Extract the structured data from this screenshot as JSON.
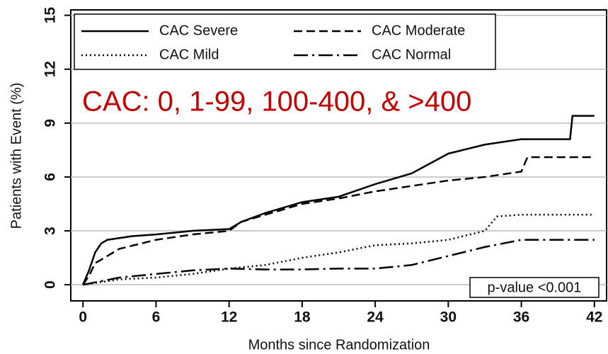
{
  "chart_data": {
    "type": "line",
    "annotation": "CAC: 0, 1-99, 100-400, & >400",
    "p_value": "p-value <0.001",
    "x_label": "Months since Randomization",
    "y_label": "Patients with Event (%)",
    "xlim": [
      -1,
      43
    ],
    "ylim": [
      -0.9,
      15.3
    ],
    "xticks": [
      0,
      6,
      12,
      18,
      24,
      30,
      36,
      42
    ],
    "yticks": [
      0,
      3,
      6,
      9,
      12,
      15
    ],
    "grid": true,
    "legend": "top-left",
    "series": [
      {
        "name": "CAC Severe",
        "color": "#000000",
        "dash": "solid",
        "x": [
          0,
          0.5,
          1,
          1.5,
          2,
          3,
          4,
          6,
          9,
          12,
          13,
          15,
          18,
          21,
          24,
          27,
          30,
          33,
          36,
          40,
          40.2,
          42
        ],
        "values": [
          0,
          0.8,
          1.8,
          2.3,
          2.5,
          2.6,
          2.7,
          2.8,
          3.0,
          3.1,
          3.5,
          4.0,
          4.6,
          4.9,
          5.6,
          6.2,
          7.3,
          7.8,
          8.1,
          8.1,
          9.4,
          9.4
        ]
      },
      {
        "name": "CAC Moderate",
        "color": "#000000",
        "dash": "dashed",
        "x": [
          0,
          0.5,
          1,
          2,
          3,
          6,
          9,
          12,
          13,
          15,
          18,
          21,
          24,
          27,
          30,
          33,
          36,
          36.5,
          42
        ],
        "values": [
          0,
          0.5,
          1.2,
          1.6,
          2.0,
          2.5,
          2.8,
          3.0,
          3.5,
          3.9,
          4.5,
          4.8,
          5.2,
          5.5,
          5.8,
          6.0,
          6.3,
          7.1,
          7.1
        ]
      },
      {
        "name": "CAC Mild",
        "color": "#000000",
        "dash": "dotted",
        "x": [
          0,
          1,
          3,
          6,
          9,
          12,
          15,
          18,
          21,
          24,
          27,
          30,
          33,
          34,
          36,
          42
        ],
        "values": [
          0,
          0.1,
          0.3,
          0.4,
          0.6,
          0.9,
          1.1,
          1.5,
          1.8,
          2.2,
          2.3,
          2.5,
          3.0,
          3.8,
          3.9,
          3.9
        ]
      },
      {
        "name": "CAC Normal",
        "color": "#000000",
        "dash": "dashdot",
        "x": [
          0,
          3,
          6,
          9,
          12,
          15,
          18,
          21,
          24,
          27,
          30,
          33,
          36,
          42
        ],
        "values": [
          0,
          0.4,
          0.6,
          0.8,
          0.9,
          0.85,
          0.85,
          0.9,
          0.9,
          1.1,
          1.6,
          2.1,
          2.5,
          2.5
        ]
      }
    ]
  }
}
